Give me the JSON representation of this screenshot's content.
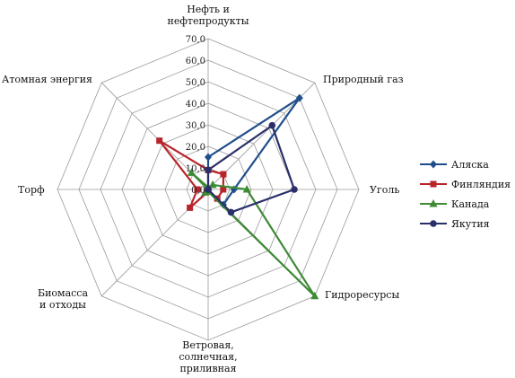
{
  "chart_data": {
    "type": "radar",
    "axes": [
      "Нефть и нефтепродукты",
      "Природный газ",
      "Уголь",
      "Гидроресурсы",
      "Ветровая, солнечная, приливная",
      "Биомасса и отходы",
      "Торф",
      "Атомная энергия"
    ],
    "axis_label_lines": [
      [
        "Нефть и",
        "нефтепродукты"
      ],
      [
        "Природный газ"
      ],
      [
        "Уголь"
      ],
      [
        "Гидроресурсы"
      ],
      [
        "Ветровая,",
        "солнечная,",
        "приливная"
      ],
      [
        "Биомасса",
        "и отходы"
      ],
      [
        "Торф"
      ],
      [
        "Атомная энергия"
      ]
    ],
    "ticks": [
      "0,0",
      "10,0",
      "20,0",
      "30,0",
      "40,0",
      "50,0",
      "60,0",
      "70,0"
    ],
    "range": [
      0,
      70
    ],
    "series": [
      {
        "name": "Аляска",
        "color": "#1f4e8c",
        "marker": "diamond",
        "values": [
          15,
          60,
          12,
          10,
          1,
          0,
          0,
          0
        ]
      },
      {
        "name": "Финляндия",
        "color": "#b8242a",
        "marker": "square",
        "values": [
          9,
          10,
          7,
          6,
          1,
          12,
          5,
          32
        ]
      },
      {
        "name": "Канада",
        "color": "#3e8a35",
        "marker": "triangle",
        "values": [
          1,
          3,
          18,
          70,
          1,
          2,
          0,
          11
        ]
      },
      {
        "name": "Якутия",
        "color": "#2a2f6a",
        "marker": "circle",
        "values": [
          9,
          42,
          40,
          15,
          0,
          0,
          0,
          0
        ]
      }
    ],
    "legend_position": "right"
  }
}
